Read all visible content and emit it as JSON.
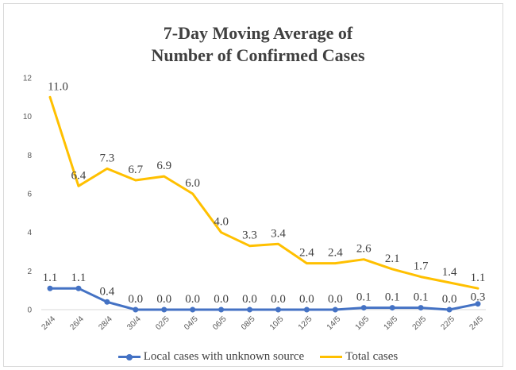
{
  "chart_data": {
    "type": "line",
    "title": "7-Day Moving Average of",
    "title_line2": "Number of Confirmed Cases",
    "x": [
      "24/4",
      "26/4",
      "28/4",
      "30/4",
      "02/5",
      "04/5",
      "06/5",
      "08/5",
      "10/5",
      "12/5",
      "14/5",
      "16/5",
      "18/5",
      "20/5",
      "22/5",
      "24/5"
    ],
    "ylim": [
      0,
      12
    ],
    "yticks": [
      "0",
      "2",
      "4",
      "6",
      "8",
      "10",
      "12"
    ],
    "series": [
      {
        "name": "Local cases with unknown source",
        "color": "#4472c4",
        "marker": true,
        "values": [
          1.1,
          1.1,
          0.4,
          0.0,
          0.0,
          0.0,
          0.0,
          0.0,
          0.0,
          0.0,
          0.0,
          0.1,
          0.1,
          0.1,
          0.0,
          0.3
        ],
        "labels": [
          "1.1",
          "1.1",
          "0.4",
          "0.0",
          "0.0",
          "0.0",
          "0.0",
          "0.0",
          "0.0",
          "0.0",
          "0.0",
          "0.1",
          "0.1",
          "0.1",
          "0.0",
          "0.3"
        ]
      },
      {
        "name": "Total cases",
        "color": "#ffc000",
        "marker": false,
        "values": [
          11.0,
          6.4,
          7.3,
          6.7,
          6.9,
          6.0,
          4.0,
          3.3,
          3.4,
          2.4,
          2.4,
          2.6,
          2.1,
          1.7,
          1.4,
          1.1
        ],
        "labels": [
          "11.0",
          "6.4",
          "7.3",
          "6.7",
          "6.9",
          "6.0",
          "4.0",
          "3.3",
          "3.4",
          "2.4",
          "2.4",
          "2.6",
          "2.1",
          "1.7",
          "1.4",
          "1.1"
        ]
      }
    ],
    "grid": false,
    "legend": "bottom"
  }
}
